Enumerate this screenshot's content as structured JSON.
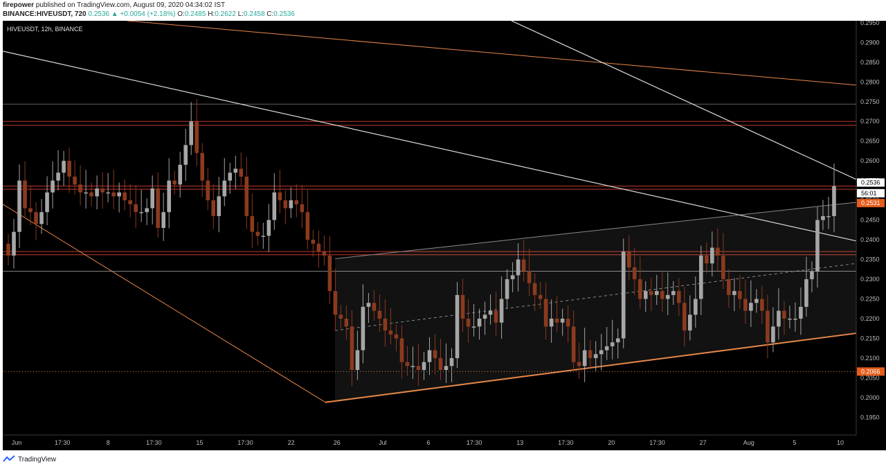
{
  "header": {
    "author": "firepower",
    "published_text": "published on TradingView.com, August 09, 2020 04:34:02 IST",
    "symbol_full": "BINANCE:HIVEUSDT, 720",
    "last": "0.2536",
    "change": "▲ +0.0054 (+2.18%)",
    "o_label": "O:",
    "o_val": "0.2485",
    "h_label": "H:",
    "h_val": "0.2622",
    "l_label": "L:",
    "l_val": "0.2458",
    "c_label": "C:",
    "c_val": "0.2536"
  },
  "footer": {
    "brand": "TradingView"
  },
  "colors": {
    "background": "#000000",
    "up_candle": "#a6a6a6",
    "down_candle": "#8b3a1e",
    "orange_line": "#e8884a",
    "white_line": "#d9d9d9",
    "red_level": "#c0392b",
    "axis_text": "#bfbfbf",
    "price_tag_last": "#ffffff",
    "price_tag_orange": "#e65c1a"
  },
  "chart_data": {
    "type": "candlestick",
    "title": "HIVEUSDT, 12h, BINANCE",
    "ylim": [
      0.1905,
      0.2955
    ],
    "yticks": [
      "0.2950",
      "0.2900",
      "0.2850",
      "0.2800",
      "0.2750",
      "0.2700",
      "0.2650",
      "0.2600",
      "0.2550",
      "0.2500",
      "0.2450",
      "0.2400",
      "0.2350",
      "0.2300",
      "0.2250",
      "0.2200",
      "0.2150",
      "0.2100",
      "0.2050",
      "0.2000",
      "0.1950"
    ],
    "xticks": [
      "Jun",
      "17:30",
      "8",
      "17:30",
      "15",
      "17:30",
      "22",
      "26",
      "Jul",
      "6",
      "17:30",
      "13",
      "17:30",
      "20",
      "17:30",
      "27",
      "Aug",
      "5",
      "10"
    ],
    "price_tags": [
      {
        "value": "0.2536",
        "style": "last"
      },
      {
        "value": "56:01",
        "style": "countdown"
      },
      {
        "value": "0.2531",
        "style": "orange"
      },
      {
        "value": "0.2066",
        "style": "orange"
      }
    ],
    "closes": [
      0.236,
      0.242,
      0.255,
      0.248,
      0.247,
      0.244,
      0.247,
      0.252,
      0.255,
      0.257,
      0.26,
      0.256,
      0.254,
      0.252,
      0.252,
      0.251,
      0.253,
      0.252,
      0.252,
      0.251,
      0.252,
      0.25,
      0.249,
      0.247,
      0.247,
      0.248,
      0.253,
      0.243,
      0.247,
      0.255,
      0.254,
      0.259,
      0.264,
      0.27,
      0.262,
      0.255,
      0.25,
      0.246,
      0.251,
      0.255,
      0.257,
      0.258,
      0.256,
      0.246,
      0.242,
      0.241,
      0.241,
      0.245,
      0.252,
      0.25,
      0.248,
      0.25,
      0.249,
      0.247,
      0.24,
      0.239,
      0.237,
      0.236,
      0.227,
      0.221,
      0.22,
      0.218,
      0.207,
      0.212,
      0.223,
      0.224,
      0.222,
      0.22,
      0.217,
      0.216,
      0.215,
      0.209,
      0.208,
      0.208,
      0.207,
      0.209,
      0.212,
      0.21,
      0.207,
      0.208,
      0.21,
      0.226,
      0.22,
      0.218,
      0.218,
      0.22,
      0.221,
      0.222,
      0.219,
      0.225,
      0.23,
      0.231,
      0.235,
      0.232,
      0.229,
      0.226,
      0.225,
      0.218,
      0.22,
      0.219,
      0.22,
      0.218,
      0.209,
      0.208,
      0.212,
      0.21,
      0.211,
      0.212,
      0.213,
      0.214,
      0.215,
      0.237,
      0.233,
      0.23,
      0.225,
      0.227,
      0.226,
      0.227,
      0.225,
      0.226,
      0.227,
      0.224,
      0.217,
      0.221,
      0.225,
      0.236,
      0.234,
      0.238,
      0.236,
      0.23,
      0.226,
      0.227,
      0.225,
      0.222,
      0.224,
      0.225,
      0.222,
      0.214,
      0.218,
      0.222,
      0.22,
      0.22,
      0.22,
      0.223,
      0.23,
      0.232,
      0.245,
      0.246,
      0.246,
      0.2536
    ]
  }
}
